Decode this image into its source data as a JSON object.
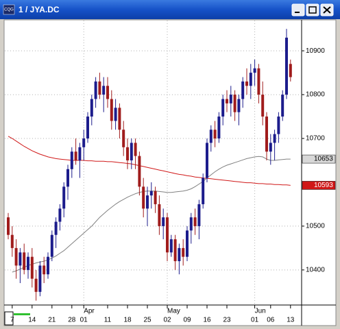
{
  "chart_data": {
    "type": "candlestick",
    "title": "1 / JYA.DC",
    "categories": [
      null,
      "7",
      null,
      null,
      null,
      null,
      "14",
      null,
      null,
      null,
      null,
      "21",
      null,
      null,
      null,
      null,
      "28",
      null,
      null,
      "01",
      null,
      null,
      null,
      null,
      null,
      "11",
      null,
      null,
      null,
      null,
      "18",
      null,
      null,
      null,
      null,
      "25",
      null,
      null,
      null,
      null,
      "02",
      null,
      null,
      null,
      null,
      "09",
      null,
      null,
      null,
      null,
      "16",
      null,
      null,
      null,
      null,
      "23",
      null,
      null,
      null,
      null,
      null,
      null,
      "01",
      null,
      null,
      null,
      "06",
      null,
      null,
      null,
      null,
      "13"
    ],
    "month_labels": [
      "Apr",
      "May",
      "Jun"
    ],
    "open": [
      10520,
      10480,
      10450,
      10410,
      10440,
      10400,
      10430,
      10380,
      10350,
      10410,
      10390,
      10430,
      10480,
      10510,
      10540,
      10590,
      10630,
      10670,
      10650,
      10680,
      10700,
      10750,
      10790,
      10830,
      10800,
      10820,
      10790,
      10740,
      10770,
      10720,
      10680,
      10650,
      10690,
      10660,
      10590,
      10540,
      10570,
      10580,
      10550,
      10500,
      10520,
      10440,
      10470,
      10420,
      10450,
      10430,
      10490,
      10520,
      10500,
      10550,
      10610,
      10690,
      10720,
      10700,
      10750,
      10790,
      10780,
      10800,
      10760,
      10790,
      10830,
      10820,
      10850,
      10860,
      10800,
      10750,
      10670,
      10690,
      10710,
      10750,
      10800,
      10870
    ],
    "high": [
      10530,
      10500,
      10470,
      10450,
      10460,
      10440,
      10450,
      10400,
      10420,
      10430,
      10440,
      10490,
      10520,
      10550,
      10600,
      10640,
      10680,
      10700,
      10690,
      10720,
      10760,
      10800,
      10840,
      10850,
      10840,
      10840,
      10810,
      10790,
      10780,
      10740,
      10700,
      10700,
      10700,
      10670,
      10610,
      10590,
      10600,
      10590,
      10570,
      10540,
      10530,
      10480,
      10480,
      10460,
      10470,
      10500,
      10530,
      10540,
      10560,
      10620,
      10700,
      10730,
      10740,
      10760,
      10800,
      10810,
      10820,
      10810,
      10800,
      10840,
      10860,
      10870,
      10880,
      10870,
      10830,
      10760,
      10710,
      10720,
      10760,
      10810,
      10950,
      10880
    ],
    "low": [
      10470,
      10430,
      10380,
      10370,
      10390,
      10380,
      10360,
      10330,
      10340,
      10370,
      10380,
      10420,
      10450,
      10490,
      10520,
      10560,
      10610,
      10640,
      10610,
      10650,
      10690,
      10730,
      10770,
      10790,
      10760,
      10770,
      10720,
      10720,
      10700,
      10660,
      10630,
      10630,
      10630,
      10570,
      10520,
      10500,
      10540,
      10530,
      10480,
      10470,
      10420,
      10430,
      10400,
      10390,
      10410,
      10420,
      10460,
      10480,
      10470,
      10540,
      10600,
      10670,
      10680,
      10690,
      10730,
      10760,
      10750,
      10740,
      10730,
      10770,
      10800,
      10790,
      10820,
      10780,
      10730,
      10650,
      10640,
      10650,
      10690,
      10740,
      10790,
      10830
    ],
    "close": [
      10480,
      10450,
      10410,
      10440,
      10400,
      10430,
      10380,
      10350,
      10410,
      10390,
      10430,
      10480,
      10510,
      10540,
      10590,
      10630,
      10670,
      10650,
      10680,
      10700,
      10750,
      10790,
      10830,
      10800,
      10820,
      10790,
      10740,
      10770,
      10720,
      10680,
      10650,
      10690,
      10660,
      10590,
      10540,
      10570,
      10580,
      10550,
      10500,
      10520,
      10440,
      10470,
      10420,
      10450,
      10430,
      10490,
      10520,
      10500,
      10550,
      10610,
      10690,
      10720,
      10700,
      10750,
      10790,
      10780,
      10800,
      10760,
      10790,
      10830,
      10820,
      10850,
      10860,
      10800,
      10750,
      10670,
      10690,
      10710,
      10750,
      10800,
      10930,
      10840
    ],
    "up_color": "#1c1c8c",
    "down_color": "#a01c1c",
    "series": [
      {
        "color": "#d01818",
        "values": [
          10705,
          10700,
          10694,
          10688,
          10682,
          10677,
          10672,
          10668,
          10664,
          10661,
          10658,
          10656,
          10654,
          10653,
          10652,
          10651,
          10650,
          10650,
          10650,
          10650,
          10649,
          10649,
          10648,
          10648,
          10648,
          10647,
          10647,
          10646,
          10645,
          10644,
          10643,
          10642,
          10640,
          10638,
          10636,
          10634,
          10632,
          10630,
          10628,
          10626,
          10624,
          10622,
          10620,
          10618,
          10617,
          10615,
          10614,
          10612,
          10611,
          10610,
          10609,
          10608,
          10607,
          10606,
          10605,
          10604,
          10603,
          10602,
          10601,
          10600,
          10599,
          10599,
          10598,
          10597,
          10597,
          10596,
          10596,
          10595,
          10595,
          10594,
          10594,
          10593
        ]
      },
      {
        "color": "#808080",
        "values": [
          null,
          10395,
          10398,
          10402,
          10406,
          10410,
          10413,
          10416,
          10418,
          10420,
          10423,
          10427,
          10432,
          10438,
          10444,
          10452,
          10460,
          10468,
          10476,
          10484,
          10492,
          10500,
          10510,
          10520,
          10528,
          10536,
          10543,
          10550,
          10556,
          10561,
          10566,
          10570,
          10574,
          10577,
          10579,
          10580,
          10580,
          10580,
          10579,
          10578,
          10577,
          10577,
          10578,
          10579,
          10580,
          10582,
          10585,
          10590,
          10596,
          10602,
          10610,
          10617,
          10624,
          10630,
          10635,
          10639,
          10642,
          10645,
          10648,
          10651,
          10654,
          10656,
          10658,
          10659,
          10658,
          10653,
          10650,
          10650,
          10651,
          10652,
          10653,
          10653
        ]
      }
    ],
    "ylim": [
      10320,
      10969
    ],
    "yticks": [
      10400,
      10500,
      10700,
      10800,
      10900
    ],
    "grid": true
  }
}
